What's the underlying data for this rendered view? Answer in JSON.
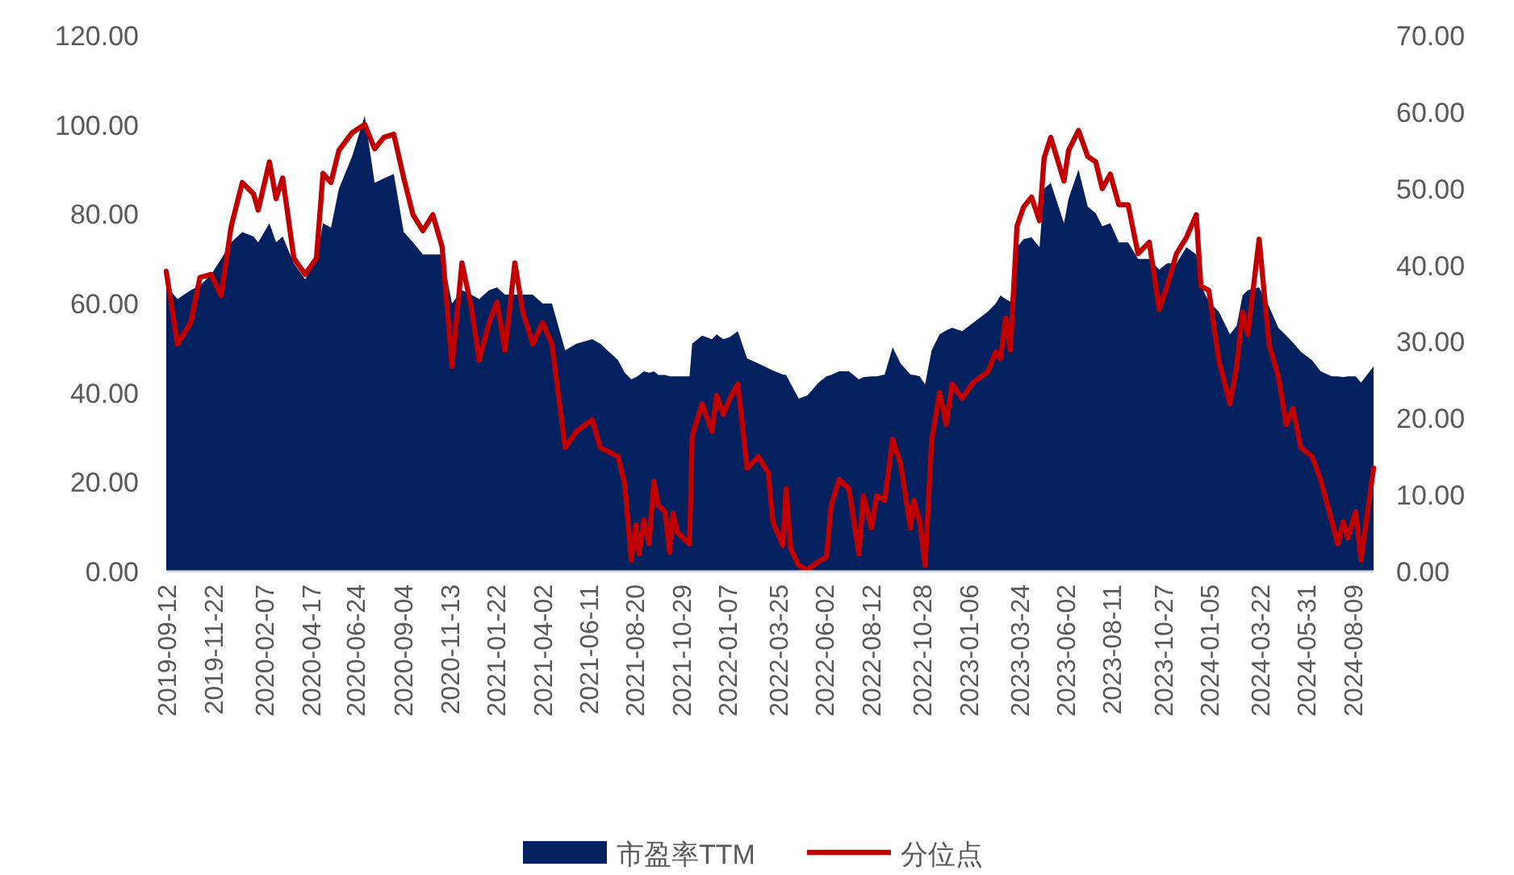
{
  "chart_data": {
    "type": "area",
    "legend": "bottom",
    "x": [
      "2019-09-12",
      "2019-09-29",
      "2019-10-19",
      "2019-11-02",
      "2019-11-19",
      "2019-12-04",
      "2019-12-19",
      "2020-01-05",
      "2020-01-22",
      "2020-01-29",
      "2020-02-15",
      "2020-02-25",
      "2020-03-06",
      "2020-03-23",
      "2020-04-09",
      "2020-04-26",
      "2020-05-06",
      "2020-05-18",
      "2020-05-30",
      "2020-06-19",
      "2020-07-08",
      "2020-07-23",
      "2020-08-06",
      "2020-08-21",
      "2020-09-05",
      "2020-09-19",
      "2020-10-04",
      "2020-10-19",
      "2020-11-02",
      "2020-11-17",
      "2020-12-02",
      "2020-12-16",
      "2020-12-28",
      "2021-01-12",
      "2021-01-24",
      "2021-02-05",
      "2021-02-20",
      "2021-03-04",
      "2021-03-19",
      "2021-04-03",
      "2021-04-17",
      "2021-05-07",
      "2021-05-24",
      "2021-06-17",
      "2021-06-29",
      "2021-07-26",
      "2021-08-05",
      "2021-08-15",
      "2021-08-22",
      "2021-08-27",
      "2021-09-03",
      "2021-09-11",
      "2021-09-18",
      "2021-09-25",
      "2021-10-05",
      "2021-10-12",
      "2021-10-17",
      "2021-10-24",
      "2021-11-11",
      "2021-11-15",
      "2021-11-30",
      "2021-12-15",
      "2021-12-22",
      "2022-01-01",
      "2022-01-11",
      "2022-01-23",
      "2022-02-06",
      "2022-02-23",
      "2022-03-10",
      "2022-03-17",
      "2022-04-01",
      "2022-04-06",
      "2022-04-13",
      "2022-04-25",
      "2022-05-08",
      "2022-05-25",
      "2022-06-06",
      "2022-06-13",
      "2022-06-25",
      "2022-07-10",
      "2022-07-25",
      "2022-08-01",
      "2022-08-13",
      "2022-08-21",
      "2022-09-02",
      "2022-09-14",
      "2022-09-26",
      "2022-10-11",
      "2022-10-16",
      "2022-10-25",
      "2022-11-02",
      "2022-11-12",
      "2022-11-24",
      "2022-12-04",
      "2022-12-13",
      "2022-12-28",
      "2023-01-14",
      "2023-02-05",
      "2023-02-17",
      "2023-02-24",
      "2023-03-04",
      "2023-03-11",
      "2023-03-21",
      "2023-03-31",
      "2023-04-12",
      "2023-04-24",
      "2023-05-01",
      "2023-05-11",
      "2023-05-31",
      "2023-06-07",
      "2023-06-22",
      "2023-07-06",
      "2023-07-18",
      "2023-07-28",
      "2023-08-09",
      "2023-08-22",
      "2023-09-05",
      "2023-09-20",
      "2023-10-07",
      "2023-10-22",
      "2023-11-03",
      "2023-11-17",
      "2023-12-02",
      "2023-12-17",
      "2023-12-24",
      "2024-01-05",
      "2024-01-20",
      "2024-02-06",
      "2024-02-16",
      "2024-02-25",
      "2024-03-04",
      "2024-03-21",
      "2024-04-05",
      "2024-04-19",
      "2024-05-01",
      "2024-05-11",
      "2024-05-23",
      "2024-06-09",
      "2024-06-22",
      "2024-07-09",
      "2024-07-18",
      "2024-07-26",
      "2024-08-02",
      "2024-08-14",
      "2024-08-22",
      "2024-09-10"
    ],
    "series": [
      {
        "name": "市盈率TTM",
        "color": "#03215e",
        "values": [
          64,
          61,
          63,
          64,
          66.5,
          70,
          73.7,
          76,
          75,
          73.7,
          78,
          73.7,
          75,
          69,
          65.4,
          70,
          78,
          77,
          85.7,
          93,
          102,
          87,
          88,
          89,
          76,
          73.7,
          71,
          71,
          71,
          60,
          63,
          62,
          61,
          63,
          63.6,
          62,
          62,
          62,
          62,
          60,
          60,
          49.5,
          51,
          52,
          51,
          47.3,
          44.5,
          43,
          43.5,
          44,
          44.8,
          44.5,
          44.8,
          44,
          44,
          43.7,
          43.7,
          43.7,
          43.7,
          51,
          52.8,
          52,
          53.1,
          52,
          52.5,
          53.8,
          47.7,
          46.6,
          45.5,
          45,
          44.1,
          44,
          42,
          38.7,
          39.4,
          42.3,
          43.7,
          44,
          44.8,
          44.8,
          43,
          43.5,
          43.7,
          43.7,
          44.1,
          50.2,
          46.6,
          44.1,
          44,
          43.7,
          41.9,
          49.5,
          53.1,
          54,
          54.6,
          53.8,
          55.7,
          58.2,
          60,
          61.8,
          61,
          60.4,
          72.6,
          74.4,
          74.8,
          72.6,
          85.7,
          87,
          78,
          83.5,
          90,
          81.7,
          80.2,
          77.3,
          78,
          73.7,
          73.7,
          70,
          70,
          67.6,
          69,
          69,
          72.6,
          71,
          64,
          60.4,
          58.2,
          53.1,
          55,
          61.8,
          63,
          63.6,
          59.3,
          54.6,
          52.8,
          51.3,
          49.2,
          47.3,
          44.8,
          43.7,
          43.7,
          43.5,
          43.7,
          43.7,
          42.3,
          45.9
        ]
      },
      {
        "type": "line",
        "name": "分位点",
        "color": "#c00000",
        "axis": "y2",
        "values": [
          39.2,
          29.7,
          32.5,
          38.4,
          38.8,
          36,
          45,
          50.8,
          49.3,
          47.2,
          53.5,
          48.7,
          51.4,
          40.9,
          38.8,
          40.9,
          52,
          50.8,
          55,
          57.3,
          58.4,
          55.2,
          56.7,
          57.1,
          51.4,
          46.6,
          44.5,
          46.6,
          42.4,
          26.8,
          40.3,
          34.6,
          27.6,
          32.5,
          35.2,
          28.9,
          40.3,
          33.9,
          29.7,
          32.5,
          29.7,
          16.2,
          18.3,
          19.8,
          16.2,
          15,
          11.4,
          1.5,
          6.1,
          2.3,
          6.7,
          3.6,
          11.8,
          8.6,
          7.8,
          2.5,
          7.6,
          5.1,
          3.6,
          17.7,
          21.9,
          18.3,
          23,
          20.5,
          22.6,
          24.5,
          13.5,
          15,
          12.9,
          6.5,
          3.4,
          10.8,
          3,
          0.8,
          0.2,
          1.3,
          1.9,
          8.6,
          12,
          10.8,
          2.3,
          9.9,
          5.7,
          9.9,
          9.3,
          17.3,
          14.1,
          5.7,
          9.3,
          6.5,
          0.8,
          17.1,
          23.4,
          19.2,
          24.5,
          22.6,
          24.7,
          26.1,
          28.7,
          27.8,
          33.1,
          28.9,
          45.1,
          47.6,
          48.9,
          45.8,
          54,
          56.7,
          51,
          55,
          57.6,
          54.2,
          53.5,
          50,
          51.9,
          47.9,
          47.9,
          41.5,
          43,
          34.2,
          37.3,
          41.5,
          43.6,
          46.6,
          37.3,
          36.7,
          27.6,
          21.9,
          26.8,
          33.9,
          31,
          43.4,
          29.7,
          25.5,
          19.2,
          21.3,
          16.2,
          15,
          12,
          6.5,
          3.6,
          6.5,
          4.4,
          7.8,
          1.5,
          13.5
        ]
      }
    ],
    "xlim": [
      "2019-09-12",
      "2024-09-10"
    ],
    "xticks": [
      "2019-09-12",
      "2019-11-22",
      "2020-02-07",
      "2020-04-17",
      "2020-06-24",
      "2020-09-04",
      "2020-11-13",
      "2021-01-22",
      "2021-04-02",
      "2021-06-11",
      "2021-08-20",
      "2021-10-29",
      "2022-01-07",
      "2022-03-25",
      "2022-06-02",
      "2022-08-12",
      "2022-10-28",
      "2023-01-06",
      "2023-03-24",
      "2023-06-02",
      "2023-08-11",
      "2023-10-27",
      "2024-01-05",
      "2024-03-22",
      "2024-05-31",
      "2024-08-09"
    ],
    "ylim": [
      0,
      120
    ],
    "yticks": [
      {
        "value": 0,
        "label": "0.00"
      },
      {
        "value": 20,
        "label": "20.00"
      },
      {
        "value": 40,
        "label": "40.00"
      },
      {
        "value": 60,
        "label": "60.00"
      },
      {
        "value": 80,
        "label": "80.00"
      },
      {
        "value": 100,
        "label": "100.00"
      },
      {
        "value": 120,
        "label": "120.00"
      }
    ],
    "y2lim": [
      0,
      70
    ],
    "y2ticks": [
      {
        "value": 0,
        "label": "0.00"
      },
      {
        "value": 10,
        "label": "10.00"
      },
      {
        "value": 20,
        "label": "20.00"
      },
      {
        "value": 30,
        "label": "30.00"
      },
      {
        "value": 40,
        "label": "40.00"
      },
      {
        "value": 50,
        "label": "50.00"
      },
      {
        "value": 60,
        "label": "60.00"
      },
      {
        "value": 70,
        "label": "70.00"
      }
    ]
  }
}
